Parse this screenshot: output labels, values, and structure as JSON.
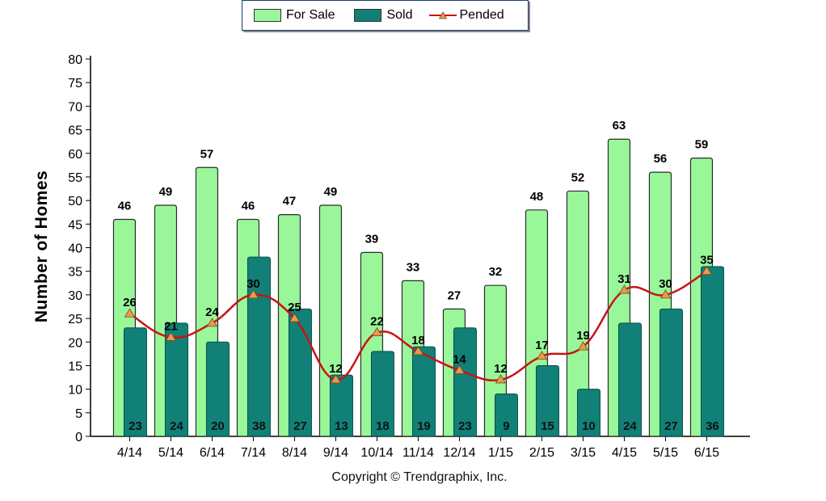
{
  "chart_data": {
    "type": "bar",
    "categories": [
      "4/14",
      "5/14",
      "6/14",
      "7/14",
      "8/14",
      "9/14",
      "10/14",
      "11/14",
      "12/14",
      "1/15",
      "2/15",
      "3/15",
      "4/15",
      "5/15",
      "6/15"
    ],
    "series": [
      {
        "name": "For Sale",
        "type": "bar",
        "color": "#99f799",
        "values": [
          46,
          49,
          57,
          46,
          47,
          49,
          39,
          33,
          27,
          32,
          48,
          52,
          63,
          56,
          59
        ]
      },
      {
        "name": "Sold",
        "type": "bar",
        "color": "#118077",
        "values": [
          23,
          24,
          20,
          38,
          27,
          13,
          18,
          19,
          23,
          9,
          15,
          10,
          24,
          27,
          36
        ]
      },
      {
        "name": "Pended",
        "type": "line",
        "color": "#c81414",
        "marker_color": "#e89a4e",
        "values": [
          26,
          21,
          24,
          30,
          25,
          12,
          22,
          18,
          14,
          12,
          17,
          19,
          31,
          30,
          35
        ]
      }
    ],
    "ylabel": "Number of Homes",
    "xlabel": "",
    "ylim": [
      0,
      80
    ],
    "ytick_step": 5,
    "grid": false,
    "legend_position": "top-center"
  },
  "legend": {
    "for_sale": "For Sale",
    "sold": "Sold",
    "pended": "Pended"
  },
  "footer": {
    "copyright": "Copyright © Trendgraphix, Inc."
  }
}
